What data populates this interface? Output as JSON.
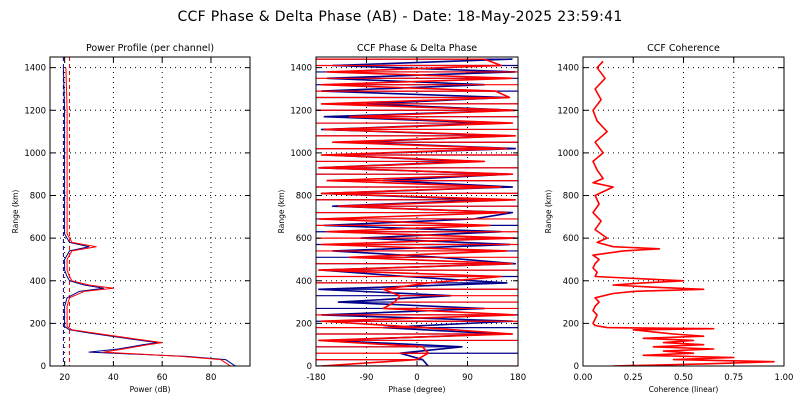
{
  "title": "CCF Phase & Delta Phase (AB) - Date: 18-May-2025 23:59:41",
  "colors": {
    "red": "#ff0000",
    "blue": "#00008b",
    "grid": "#000000"
  },
  "chart_data": [
    {
      "id": "power",
      "type": "line",
      "title": "Power Profile (per channel)",
      "xlabel": "Power (dB)",
      "ylabel": "Range (km)",
      "xlim": [
        14,
        96
      ],
      "ylim": [
        0,
        1450
      ],
      "xticks": [
        20,
        40,
        60,
        80
      ],
      "yticks": [
        0,
        200,
        400,
        600,
        800,
        1000,
        1200,
        1400
      ],
      "grid": true,
      "vlines": [
        {
          "x": 19.5,
          "color": "#00008b",
          "style": "dashed"
        },
        {
          "x": 22,
          "color": "#ff0000",
          "style": "dashed"
        }
      ],
      "series": [
        {
          "color": "#00008b",
          "y": [
            0,
            15,
            30,
            45,
            55,
            65,
            80,
            100,
            110,
            130,
            155,
            170,
            185,
            200,
            230,
            280,
            320,
            350,
            365,
            380,
            400,
            420,
            450,
            500,
            540,
            560,
            580,
            620,
            700,
            800,
            1000,
            1200,
            1400
          ],
          "x": [
            90,
            88,
            86,
            70,
            50,
            30,
            42,
            52,
            58,
            45,
            30,
            22,
            20,
            20,
            20,
            20,
            21,
            26,
            36,
            28,
            22,
            21,
            20,
            20,
            22,
            30,
            22,
            20,
            20,
            20,
            20,
            20,
            19.5
          ]
        },
        {
          "color": "#ff0000",
          "y": [
            0,
            15,
            30,
            45,
            55,
            65,
            80,
            100,
            110,
            130,
            155,
            170,
            185,
            200,
            230,
            280,
            320,
            350,
            365,
            380,
            400,
            420,
            450,
            500,
            540,
            560,
            580,
            620,
            700,
            800,
            1000,
            1200,
            1400
          ],
          "x": [
            88,
            86,
            84,
            68,
            52,
            36,
            44,
            54,
            60,
            47,
            32,
            23,
            21,
            21,
            21,
            21,
            22,
            28,
            40,
            30,
            23,
            22,
            21,
            21,
            23,
            33,
            23,
            21,
            21,
            21,
            21,
            21,
            20.5
          ]
        }
      ]
    },
    {
      "id": "phase",
      "type": "line",
      "title": "CCF Phase & Delta Phase",
      "xlabel": "Phase (degree)",
      "ylabel": "Range (km)",
      "xlim": [
        -180,
        180
      ],
      "ylim": [
        0,
        1450
      ],
      "xticks": [
        -180,
        -90,
        0,
        90,
        180
      ],
      "yticks": [
        0,
        200,
        400,
        600,
        800,
        1000,
        1200,
        1400
      ],
      "grid": true,
      "series": [
        {
          "color": "#00008b",
          "y": [
            0,
            30,
            60,
            90,
            120,
            150,
            180,
            210,
            240,
            270,
            300,
            330,
            360,
            390,
            420,
            450,
            480,
            510,
            540,
            570,
            600,
            630,
            660,
            690,
            720,
            750,
            780,
            810,
            840,
            870,
            900,
            930,
            960,
            990,
            1020,
            1050,
            1080,
            1110,
            1140,
            1170,
            1200,
            1230,
            1260,
            1290,
            1320,
            1350,
            1380,
            1410,
            1440
          ],
          "x": [
            20,
            10,
            -30,
            80,
            -160,
            150,
            -60,
            170,
            -170,
            120,
            -140,
            60,
            -175,
            160,
            -20,
            -170,
            175,
            40,
            -150,
            165,
            -100,
            150,
            -165,
            100,
            170,
            -150,
            130,
            -170,
            170,
            -60,
            165,
            -175,
            90,
            -160,
            175,
            -120,
            160,
            -170,
            140,
            -165,
            175,
            -90,
            160,
            -170,
            120,
            -160,
            175,
            -150,
            170
          ]
        },
        {
          "color": "#ff0000",
          "y": [
            0,
            30,
            60,
            90,
            120,
            150,
            180,
            210,
            240,
            270,
            300,
            330,
            360,
            390,
            420,
            450,
            480,
            510,
            540,
            570,
            600,
            630,
            660,
            690,
            720,
            750,
            780,
            810,
            840,
            870,
            900,
            930,
            960,
            990,
            1020,
            1050,
            1080,
            1110,
            1140,
            1170,
            1200,
            1230,
            1260,
            1290,
            1320,
            1350,
            1380,
            1410,
            1440
          ],
          "x": [
            -170,
            0,
            20,
            10,
            -175,
            170,
            10,
            -170,
            175,
            -60,
            -40,
            -30,
            -60,
            20,
            150,
            -175,
            170,
            -120,
            160,
            -170,
            175,
            -160,
            130,
            -175,
            160,
            -140,
            175,
            -170,
            150,
            -160,
            170,
            -175,
            120,
            -170,
            160,
            -150,
            175,
            -165,
            170,
            -120,
            175,
            -170,
            165,
            140,
            -170,
            170,
            -160,
            150,
            120
          ]
        }
      ]
    },
    {
      "id": "coherence",
      "type": "line",
      "title": "CCF Coherence",
      "xlabel": "Coherence (linear)",
      "ylabel": "Range (km)",
      "xlim": [
        0,
        1
      ],
      "ylim": [
        0,
        1450
      ],
      "xticks": [
        0.0,
        0.25,
        0.5,
        0.75,
        1.0
      ],
      "yticks": [
        0,
        200,
        400,
        600,
        800,
        1000,
        1200,
        1400
      ],
      "grid": true,
      "series": [
        {
          "color": "#ff0000",
          "y": [
            0,
            10,
            20,
            30,
            40,
            50,
            60,
            70,
            80,
            90,
            100,
            110,
            120,
            130,
            140,
            150,
            160,
            170,
            175,
            180,
            190,
            200,
            220,
            240,
            260,
            280,
            300,
            320,
            340,
            350,
            360,
            370,
            380,
            390,
            400,
            420,
            440,
            460,
            480,
            500,
            520,
            540,
            550,
            560,
            580,
            600,
            640,
            680,
            720,
            760,
            800,
            840,
            860,
            880,
            920,
            960,
            1000,
            1050,
            1100,
            1150,
            1200,
            1250,
            1300,
            1350,
            1400,
            1430
          ],
          "x": [
            0.15,
            0.6,
            0.95,
            0.45,
            0.75,
            0.3,
            0.55,
            0.4,
            0.65,
            0.35,
            0.6,
            0.4,
            0.55,
            0.3,
            0.6,
            0.45,
            0.35,
            0.25,
            0.65,
            0.12,
            0.06,
            0.05,
            0.06,
            0.07,
            0.05,
            0.06,
            0.08,
            0.06,
            0.15,
            0.25,
            0.6,
            0.35,
            0.15,
            0.3,
            0.5,
            0.06,
            0.07,
            0.05,
            0.06,
            0.08,
            0.05,
            0.2,
            0.38,
            0.15,
            0.07,
            0.12,
            0.06,
            0.09,
            0.05,
            0.08,
            0.06,
            0.15,
            0.05,
            0.1,
            0.07,
            0.05,
            0.1,
            0.06,
            0.12,
            0.07,
            0.05,
            0.09,
            0.06,
            0.11,
            0.07,
            0.1
          ]
        }
      ]
    }
  ]
}
